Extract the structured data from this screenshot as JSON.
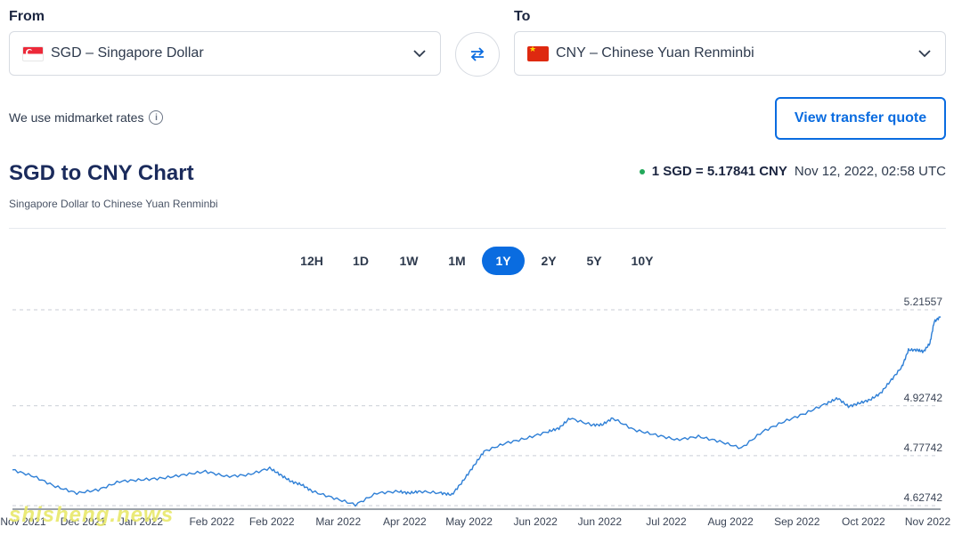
{
  "from": {
    "label": "From",
    "value": "SGD – Singapore Dollar",
    "flag": "flag-sg-icon"
  },
  "to": {
    "label": "To",
    "value": "CNY – Chinese Yuan Renminbi",
    "flag": "flag-cn-icon"
  },
  "midmarket_text": "We use midmarket rates",
  "quote_button": "View transfer quote",
  "chart_title": "SGD to CNY Chart",
  "chart_subtitle": "Singapore Dollar to Chinese Yuan Renminbi",
  "rate": {
    "main": "1 SGD = 5.17841 CNY",
    "time": "Nov 12, 2022, 02:58 UTC"
  },
  "ranges": [
    "12H",
    "1D",
    "1W",
    "1M",
    "1Y",
    "2Y",
    "5Y",
    "10Y"
  ],
  "active_range": "1Y",
  "colors": {
    "accent": "#0a6ce0",
    "line": "#2e7fd6",
    "live_dot": "#22a85a"
  },
  "watermark": "shisheng.news",
  "chart_data": {
    "type": "line",
    "title": "",
    "xlabel": "",
    "ylabel": "",
    "y_ticks": [
      "5.21557",
      "4.92742",
      "4.77742",
      "4.62742"
    ],
    "y_tick_values": [
      5.21557,
      4.92742,
      4.77742,
      4.62742
    ],
    "x_ticks": [
      "Nov 2021",
      "Dec 2021",
      "Jan 2022",
      "Feb 2022",
      "Feb 2022",
      "Mar 2022",
      "Apr 2022",
      "May 2022",
      "Jun 2022",
      "Jun 2022",
      "Jul 2022",
      "Aug 2022",
      "Sep 2022",
      "Oct 2022",
      "Nov 2022"
    ],
    "x_tick_days": [
      5,
      33,
      60,
      93,
      121,
      152,
      183,
      213,
      244,
      274,
      305,
      335,
      366,
      397,
      427
    ],
    "ylim": [
      4.6274,
      5.2156
    ],
    "xlim": [
      0,
      433
    ],
    "grid": true,
    "series": [
      {
        "x": [
          0,
          10,
          20,
          30,
          40,
          50,
          60,
          70,
          80,
          90,
          100,
          110,
          120,
          125,
          130,
          135,
          140,
          150,
          160,
          170,
          180,
          185,
          190,
          200,
          205,
          210,
          215,
          220,
          230,
          240,
          250,
          255,
          260,
          270,
          275,
          280,
          290,
          300,
          310,
          320,
          330,
          340,
          350,
          360,
          370,
          380,
          385,
          390,
          395,
          400,
          405,
          410,
          415,
          418,
          422,
          425,
          428,
          430,
          433
        ],
        "y": [
          4.735,
          4.715,
          4.685,
          4.665,
          4.675,
          4.7,
          4.705,
          4.71,
          4.72,
          4.73,
          4.715,
          4.72,
          4.74,
          4.72,
          4.7,
          4.69,
          4.67,
          4.65,
          4.63,
          4.665,
          4.67,
          4.665,
          4.67,
          4.665,
          4.66,
          4.7,
          4.745,
          4.79,
          4.815,
          4.83,
          4.85,
          4.86,
          4.89,
          4.87,
          4.87,
          4.89,
          4.855,
          4.84,
          4.825,
          4.835,
          4.82,
          4.8,
          4.85,
          4.88,
          4.905,
          4.935,
          4.95,
          4.925,
          4.935,
          4.945,
          4.965,
          5.005,
          5.045,
          5.095,
          5.095,
          5.09,
          5.115,
          5.18,
          5.195
        ]
      }
    ]
  }
}
